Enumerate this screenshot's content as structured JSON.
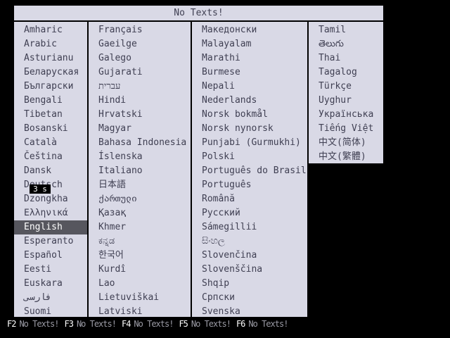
{
  "header": {
    "title": "No Texts!"
  },
  "timeout_badge": "3 s",
  "selected_language": "English",
  "columns": [
    [
      "Amharic",
      "Arabic",
      "Asturianu",
      "Беларуская",
      "Български",
      "Bengali",
      "Tibetan",
      "Bosanski",
      "Català",
      "Čeština",
      "Dansk",
      "Deutsch",
      "Dzongkha",
      "Ελληνικά",
      "English",
      "Esperanto",
      "Español",
      "Eesti",
      "Euskara",
      "فارسی",
      "Suomi"
    ],
    [
      "Français",
      "Gaeilge",
      "Galego",
      "Gujarati",
      "עברית",
      "Hindi",
      "Hrvatski",
      "Magyar",
      "Bahasa Indonesia",
      "Íslenska",
      "Italiano",
      "日本語",
      "ქართული",
      "Қазақ",
      "Khmer",
      "ಕನ್ನಡ",
      "한국어",
      "Kurdî",
      "Lao",
      "Lietuviškai",
      "Latviski"
    ],
    [
      "Македонски",
      "Malayalam",
      "Marathi",
      "Burmese",
      "Nepali",
      "Nederlands",
      "Norsk bokmål",
      "Norsk nynorsk",
      "Punjabi (Gurmukhi)",
      "Polski",
      "Português do Brasil",
      "Português",
      "Română",
      "Русский",
      "Sámegillii",
      "සිංහල",
      "Slovenčina",
      "Slovenščina",
      "Shqip",
      "Српски",
      "Svenska"
    ],
    [
      "Tamil",
      "తెలుగు",
      "Thai",
      "Tagalog",
      "Türkçe",
      "Uyghur",
      "Українська",
      "Tiếng Việt",
      "中文(简体)",
      "中文(繁體)"
    ]
  ],
  "fkeys": [
    {
      "key": "F2",
      "label": "No Texts!"
    },
    {
      "key": "F3",
      "label": "No Texts!"
    },
    {
      "key": "F4",
      "label": "No Texts!"
    },
    {
      "key": "F5",
      "label": "No Texts!"
    },
    {
      "key": "F6",
      "label": "No Texts!"
    }
  ],
  "colors": {
    "screen_bg": "#000000",
    "panel_bg": "#d9d9e6",
    "panel_text": "#3f3f52",
    "selected_bg": "#56565e",
    "selected_text": "#ffffff",
    "fkey_key_text": "#ffffff",
    "fkey_label_text": "#9b9ba5",
    "timer_bg": "#000000",
    "timer_text": "#ffffff"
  }
}
